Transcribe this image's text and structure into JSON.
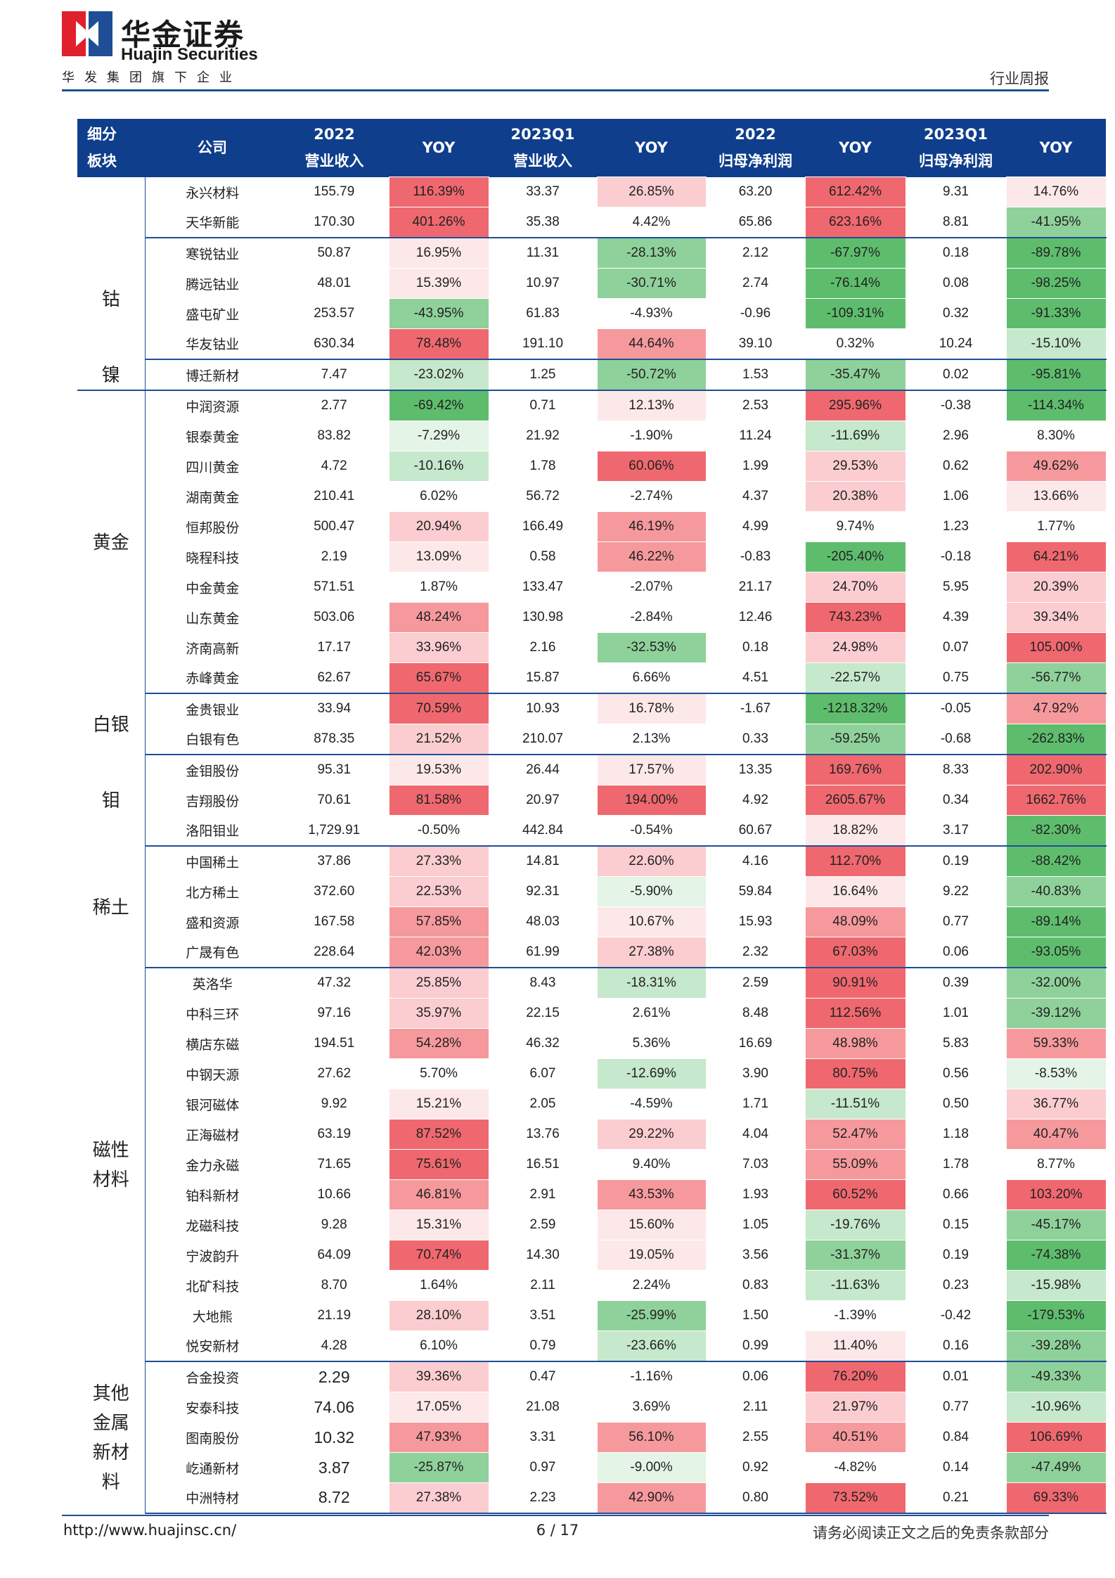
{
  "header": {
    "brand_cn": "华金证券",
    "brand_en": "Huajin Securities",
    "tagline": "华发集团旗下企业",
    "report_type": "行业周报"
  },
  "colors": {
    "header_blue": "#0f3e8c",
    "rule_blue": "#1f4e96",
    "logo_red": "#e0202a",
    "logo_blue": "#1f4e96"
  },
  "table": {
    "headers": [
      {
        "line1": "细分",
        "line2": "板块"
      },
      {
        "line1": "公司",
        "line2": ""
      },
      {
        "line1": "2022",
        "line2": "营业收入"
      },
      {
        "line1": "YOY",
        "line2": ""
      },
      {
        "line1": "2023Q1",
        "line2": "营业收入"
      },
      {
        "line1": "YOY",
        "line2": ""
      },
      {
        "line1": "2022",
        "line2": "归母净利润"
      },
      {
        "line1": "YOY",
        "line2": ""
      },
      {
        "line1": "2023Q1",
        "line2": "归母净利润"
      },
      {
        "line1": "YOY",
        "line2": ""
      }
    ],
    "groups": [
      {
        "sector": "",
        "rows": [
          {
            "company": "永兴材料",
            "rev22": "155.79",
            "rev22_yoy": "116.39%",
            "rev23": "33.37",
            "rev23_yoy": "26.85%",
            "np22": "63.20",
            "np22_yoy": "612.42%",
            "np23": "9.31",
            "np23_yoy": "14.76%"
          },
          {
            "company": "天华新能",
            "rev22": "170.30",
            "rev22_yoy": "401.26%",
            "rev23": "35.38",
            "rev23_yoy": "4.42%",
            "np22": "65.86",
            "np22_yoy": "623.16%",
            "np23": "8.81",
            "np23_yoy": "-41.95%"
          }
        ]
      },
      {
        "sector": "钴",
        "rows": [
          {
            "company": "寒锐钴业",
            "rev22": "50.87",
            "rev22_yoy": "16.95%",
            "rev23": "11.31",
            "rev23_yoy": "-28.13%",
            "np22": "2.12",
            "np22_yoy": "-67.97%",
            "np23": "0.18",
            "np23_yoy": "-89.78%"
          },
          {
            "company": "腾远钴业",
            "rev22": "48.01",
            "rev22_yoy": "15.39%",
            "rev23": "10.97",
            "rev23_yoy": "-30.71%",
            "np22": "2.74",
            "np22_yoy": "-76.14%",
            "np23": "0.08",
            "np23_yoy": "-98.25%"
          },
          {
            "company": "盛屯矿业",
            "rev22": "253.57",
            "rev22_yoy": "-43.95%",
            "rev23": "61.83",
            "rev23_yoy": "-4.93%",
            "np22": "-0.96",
            "np22_yoy": "-109.31%",
            "np23": "0.32",
            "np23_yoy": "-91.33%"
          },
          {
            "company": "华友钴业",
            "rev22": "630.34",
            "rev22_yoy": "78.48%",
            "rev23": "191.10",
            "rev23_yoy": "44.64%",
            "np22": "39.10",
            "np22_yoy": "0.32%",
            "np23": "10.24",
            "np23_yoy": "-15.10%"
          }
        ]
      },
      {
        "sector": "镍",
        "rows": [
          {
            "company": "博迁新材",
            "rev22": "7.47",
            "rev22_yoy": "-23.02%",
            "rev23": "1.25",
            "rev23_yoy": "-50.72%",
            "np22": "1.53",
            "np22_yoy": "-35.47%",
            "np23": "0.02",
            "np23_yoy": "-95.81%"
          }
        ]
      },
      {
        "sector": "黄金",
        "rows": [
          {
            "company": "中润资源",
            "rev22": "2.77",
            "rev22_yoy": "-69.42%",
            "rev23": "0.71",
            "rev23_yoy": "12.13%",
            "np22": "2.53",
            "np22_yoy": "295.96%",
            "np23": "-0.38",
            "np23_yoy": "-114.34%"
          },
          {
            "company": "银泰黄金",
            "rev22": "83.82",
            "rev22_yoy": "-7.29%",
            "rev23": "21.92",
            "rev23_yoy": "-1.90%",
            "np22": "11.24",
            "np22_yoy": "-11.69%",
            "np23": "2.96",
            "np23_yoy": "8.30%"
          },
          {
            "company": "四川黄金",
            "rev22": "4.72",
            "rev22_yoy": "-10.16%",
            "rev23": "1.78",
            "rev23_yoy": "60.06%",
            "np22": "1.99",
            "np22_yoy": "29.53%",
            "np23": "0.62",
            "np23_yoy": "49.62%"
          },
          {
            "company": "湖南黄金",
            "rev22": "210.41",
            "rev22_yoy": "6.02%",
            "rev23": "56.72",
            "rev23_yoy": "-2.74%",
            "np22": "4.37",
            "np22_yoy": "20.38%",
            "np23": "1.06",
            "np23_yoy": "13.66%"
          },
          {
            "company": "恒邦股份",
            "rev22": "500.47",
            "rev22_yoy": "20.94%",
            "rev23": "166.49",
            "rev23_yoy": "46.19%",
            "np22": "4.99",
            "np22_yoy": "9.74%",
            "np23": "1.23",
            "np23_yoy": "1.77%"
          },
          {
            "company": "晓程科技",
            "rev22": "2.19",
            "rev22_yoy": "13.09%",
            "rev23": "0.58",
            "rev23_yoy": "46.22%",
            "np22": "-0.83",
            "np22_yoy": "-205.40%",
            "np23": "-0.18",
            "np23_yoy": "64.21%"
          },
          {
            "company": "中金黄金",
            "rev22": "571.51",
            "rev22_yoy": "1.87%",
            "rev23": "133.47",
            "rev23_yoy": "-2.07%",
            "np22": "21.17",
            "np22_yoy": "24.70%",
            "np23": "5.95",
            "np23_yoy": "20.39%"
          },
          {
            "company": "山东黄金",
            "rev22": "503.06",
            "rev22_yoy": "48.24%",
            "rev23": "130.98",
            "rev23_yoy": "-2.84%",
            "np22": "12.46",
            "np22_yoy": "743.23%",
            "np23": "4.39",
            "np23_yoy": "39.34%"
          },
          {
            "company": "济南高新",
            "rev22": "17.17",
            "rev22_yoy": "33.96%",
            "rev23": "2.16",
            "rev23_yoy": "-32.53%",
            "np22": "0.18",
            "np22_yoy": "24.98%",
            "np23": "0.07",
            "np23_yoy": "105.00%"
          },
          {
            "company": "赤峰黄金",
            "rev22": "62.67",
            "rev22_yoy": "65.67%",
            "rev23": "15.87",
            "rev23_yoy": "6.66%",
            "np22": "4.51",
            "np22_yoy": "-22.57%",
            "np23": "0.75",
            "np23_yoy": "-56.77%"
          }
        ]
      },
      {
        "sector": "白银",
        "rows": [
          {
            "company": "金贵银业",
            "rev22": "33.94",
            "rev22_yoy": "70.59%",
            "rev23": "10.93",
            "rev23_yoy": "16.78%",
            "np22": "-1.67",
            "np22_yoy": "-1218.32%",
            "np23": "-0.05",
            "np23_yoy": "47.92%"
          },
          {
            "company": "白银有色",
            "rev22": "878.35",
            "rev22_yoy": "21.52%",
            "rev23": "210.07",
            "rev23_yoy": "2.13%",
            "np22": "0.33",
            "np22_yoy": "-59.25%",
            "np23": "-0.68",
            "np23_yoy": "-262.83%"
          }
        ]
      },
      {
        "sector": "钼",
        "rows": [
          {
            "company": "金钼股份",
            "rev22": "95.31",
            "rev22_yoy": "19.53%",
            "rev23": "26.44",
            "rev23_yoy": "17.57%",
            "np22": "13.35",
            "np22_yoy": "169.76%",
            "np23": "8.33",
            "np23_yoy": "202.90%"
          },
          {
            "company": "吉翔股份",
            "rev22": "70.61",
            "rev22_yoy": "81.58%",
            "rev23": "20.97",
            "rev23_yoy": "194.00%",
            "np22": "4.92",
            "np22_yoy": "2605.67%",
            "np23": "0.34",
            "np23_yoy": "1662.76%"
          },
          {
            "company": "洛阳钼业",
            "rev22": "1,729.91",
            "rev22_yoy": "-0.50%",
            "rev23": "442.84",
            "rev23_yoy": "-0.54%",
            "np22": "60.67",
            "np22_yoy": "18.82%",
            "np23": "3.17",
            "np23_yoy": "-82.30%"
          }
        ]
      },
      {
        "sector": "稀土",
        "rows": [
          {
            "company": "中国稀土",
            "rev22": "37.86",
            "rev22_yoy": "27.33%",
            "rev23": "14.81",
            "rev23_yoy": "22.60%",
            "np22": "4.16",
            "np22_yoy": "112.70%",
            "np23": "0.19",
            "np23_yoy": "-88.42%"
          },
          {
            "company": "北方稀土",
            "rev22": "372.60",
            "rev22_yoy": "22.53%",
            "rev23": "92.31",
            "rev23_yoy": "-5.90%",
            "np22": "59.84",
            "np22_yoy": "16.64%",
            "np23": "9.22",
            "np23_yoy": "-40.83%"
          },
          {
            "company": "盛和资源",
            "rev22": "167.58",
            "rev22_yoy": "57.85%",
            "rev23": "48.03",
            "rev23_yoy": "10.67%",
            "np22": "15.93",
            "np22_yoy": "48.09%",
            "np23": "0.77",
            "np23_yoy": "-89.14%"
          },
          {
            "company": "广晟有色",
            "rev22": "228.64",
            "rev22_yoy": "42.03%",
            "rev23": "61.99",
            "rev23_yoy": "27.38%",
            "np22": "2.32",
            "np22_yoy": "67.03%",
            "np23": "0.06",
            "np23_yoy": "-93.05%"
          }
        ]
      },
      {
        "sector": "磁性材料",
        "rows": [
          {
            "company": "英洛华",
            "rev22": "47.32",
            "rev22_yoy": "25.85%",
            "rev23": "8.43",
            "rev23_yoy": "-18.31%",
            "np22": "2.59",
            "np22_yoy": "90.91%",
            "np23": "0.39",
            "np23_yoy": "-32.00%"
          },
          {
            "company": "中科三环",
            "rev22": "97.16",
            "rev22_yoy": "35.97%",
            "rev23": "22.15",
            "rev23_yoy": "2.61%",
            "np22": "8.48",
            "np22_yoy": "112.56%",
            "np23": "1.01",
            "np23_yoy": "-39.12%"
          },
          {
            "company": "横店东磁",
            "rev22": "194.51",
            "rev22_yoy": "54.28%",
            "rev23": "46.32",
            "rev23_yoy": "5.36%",
            "np22": "16.69",
            "np22_yoy": "48.98%",
            "np23": "5.83",
            "np23_yoy": "59.33%"
          },
          {
            "company": "中钢天源",
            "rev22": "27.62",
            "rev22_yoy": "5.70%",
            "rev23": "6.07",
            "rev23_yoy": "-12.69%",
            "np22": "3.90",
            "np22_yoy": "80.75%",
            "np23": "0.56",
            "np23_yoy": "-8.53%"
          },
          {
            "company": "银河磁体",
            "rev22": "9.92",
            "rev22_yoy": "15.21%",
            "rev23": "2.05",
            "rev23_yoy": "-4.59%",
            "np22": "1.71",
            "np22_yoy": "-11.51%",
            "np23": "0.50",
            "np23_yoy": "36.77%"
          },
          {
            "company": "正海磁材",
            "rev22": "63.19",
            "rev22_yoy": "87.52%",
            "rev23": "13.76",
            "rev23_yoy": "29.22%",
            "np22": "4.04",
            "np22_yoy": "52.47%",
            "np23": "1.18",
            "np23_yoy": "40.47%"
          },
          {
            "company": "金力永磁",
            "rev22": "71.65",
            "rev22_yoy": "75.61%",
            "rev23": "16.51",
            "rev23_yoy": "9.40%",
            "np22": "7.03",
            "np22_yoy": "55.09%",
            "np23": "1.78",
            "np23_yoy": "8.77%"
          },
          {
            "company": "铂科新材",
            "rev22": "10.66",
            "rev22_yoy": "46.81%",
            "rev23": "2.91",
            "rev23_yoy": "43.53%",
            "np22": "1.93",
            "np22_yoy": "60.52%",
            "np23": "0.66",
            "np23_yoy": "103.20%"
          },
          {
            "company": "龙磁科技",
            "rev22": "9.28",
            "rev22_yoy": "15.31%",
            "rev23": "2.59",
            "rev23_yoy": "15.60%",
            "np22": "1.05",
            "np22_yoy": "-19.76%",
            "np23": "0.15",
            "np23_yoy": "-45.17%"
          },
          {
            "company": "宁波韵升",
            "rev22": "64.09",
            "rev22_yoy": "70.74%",
            "rev23": "14.30",
            "rev23_yoy": "19.05%",
            "np22": "3.56",
            "np22_yoy": "-31.37%",
            "np23": "0.19",
            "np23_yoy": "-74.38%"
          },
          {
            "company": "北矿科技",
            "rev22": "8.70",
            "rev22_yoy": "1.64%",
            "rev23": "2.11",
            "rev23_yoy": "2.24%",
            "np22": "0.83",
            "np22_yoy": "-11.63%",
            "np23": "0.23",
            "np23_yoy": "-15.98%"
          },
          {
            "company": "大地熊",
            "rev22": "21.19",
            "rev22_yoy": "28.10%",
            "rev23": "3.51",
            "rev23_yoy": "-25.99%",
            "np22": "1.50",
            "np22_yoy": "-1.39%",
            "np23": "-0.42",
            "np23_yoy": "-179.53%"
          },
          {
            "company": "悦安新材",
            "rev22": "4.28",
            "rev22_yoy": "6.10%",
            "rev23": "0.79",
            "rev23_yoy": "-23.66%",
            "np22": "0.99",
            "np22_yoy": "11.40%",
            "np23": "0.16",
            "np23_yoy": "-39.28%"
          }
        ]
      },
      {
        "sector": "其他金属新材料",
        "big_rev": true,
        "rows": [
          {
            "company": "合金投资",
            "rev22": "2.29",
            "rev22_yoy": "39.36%",
            "rev23": "0.47",
            "rev23_yoy": "-1.16%",
            "np22": "0.06",
            "np22_yoy": "76.20%",
            "np23": "0.01",
            "np23_yoy": "-49.33%"
          },
          {
            "company": "安泰科技",
            "rev22": "74.06",
            "rev22_yoy": "17.05%",
            "rev23": "21.08",
            "rev23_yoy": "3.69%",
            "np22": "2.11",
            "np22_yoy": "21.97%",
            "np23": "0.77",
            "np23_yoy": "-10.96%"
          },
          {
            "company": "图南股份",
            "rev22": "10.32",
            "rev22_yoy": "47.93%",
            "rev23": "3.31",
            "rev23_yoy": "56.10%",
            "np22": "2.55",
            "np22_yoy": "40.51%",
            "np23": "0.84",
            "np23_yoy": "106.69%"
          },
          {
            "company": "屹通新材",
            "rev22": "3.87",
            "rev22_yoy": "-25.87%",
            "rev23": "0.97",
            "rev23_yoy": "-9.00%",
            "np22": "0.92",
            "np22_yoy": "-4.82%",
            "np23": "0.14",
            "np23_yoy": "-47.49%"
          },
          {
            "company": "中洲特材",
            "rev22": "8.72",
            "rev22_yoy": "27.38%",
            "rev23": "2.23",
            "rev23_yoy": "42.90%",
            "np22": "0.80",
            "np22_yoy": "73.52%",
            "np23": "0.21",
            "np23_yoy": "69.33%"
          }
        ]
      }
    ]
  },
  "footer": {
    "url": "http://www.huajinsc.cn/",
    "page": "6 / 17",
    "disclaimer": "请务必阅读正文之后的免责条款部分"
  }
}
